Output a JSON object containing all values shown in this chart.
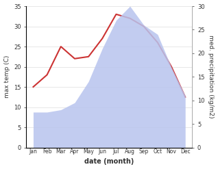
{
  "months": [
    "Jan",
    "Feb",
    "Mar",
    "Apr",
    "May",
    "Jun",
    "Jul",
    "Aug",
    "Sep",
    "Oct",
    "Nov",
    "Dec"
  ],
  "temperature": [
    15.0,
    18.0,
    25.0,
    22.0,
    22.5,
    27.0,
    33.0,
    32.0,
    30.0,
    26.0,
    20.0,
    12.5
  ],
  "precipitation": [
    7.5,
    7.5,
    8.0,
    9.5,
    14.0,
    21.0,
    27.0,
    30.0,
    26.0,
    24.0,
    17.0,
    11.0
  ],
  "temp_color": "#cc3333",
  "precip_fill_color": "#b8c4ee",
  "ylabel_left": "max temp (C)",
  "ylabel_right": "med. precipitation (kg/m2)",
  "xlabel": "date (month)",
  "ylim_left": [
    0,
    35
  ],
  "ylim_right": [
    0,
    30
  ],
  "yticks_left": [
    0,
    5,
    10,
    15,
    20,
    25,
    30,
    35
  ],
  "yticks_right": [
    0,
    5,
    10,
    15,
    20,
    25,
    30
  ]
}
